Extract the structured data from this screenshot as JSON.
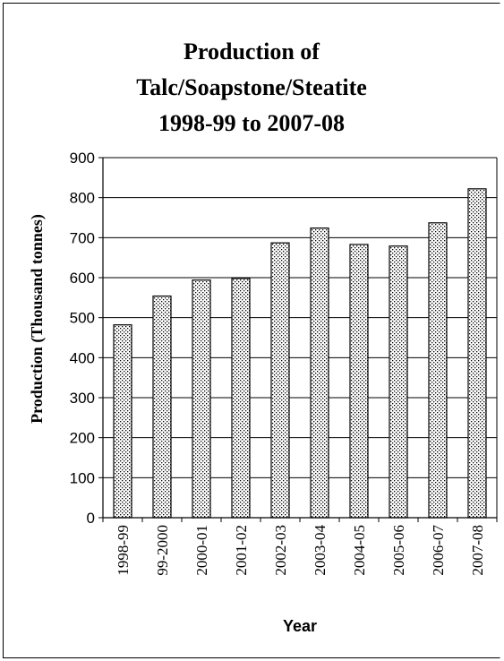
{
  "chart_data": {
    "type": "bar",
    "title_lines": [
      "Production of",
      "Talc/Soapstone/Steatite",
      "1998-99 to 2007-08"
    ],
    "xlabel": "Year",
    "ylabel": "Production (Thousand tonnes)",
    "categories": [
      "1998-99",
      "99-2000",
      "2000-01",
      "2001-02",
      "2002-03",
      "2003-04",
      "2004-05",
      "2005-06",
      "2006-07",
      "2007-08"
    ],
    "values": [
      482,
      554,
      594,
      598,
      687,
      724,
      683,
      679,
      737,
      822
    ],
    "ylim": [
      0,
      900
    ],
    "yticks": [
      "0",
      "100",
      "200",
      "300",
      "400",
      "500",
      "600",
      "700",
      "800",
      "900"
    ],
    "grid": true,
    "legend": "none",
    "bar_pattern": "dotted",
    "colors": {
      "bar_fill": "#ffffff",
      "bar_dots": "#000000",
      "bar_edge": "#000000",
      "grid": "#000000"
    }
  }
}
